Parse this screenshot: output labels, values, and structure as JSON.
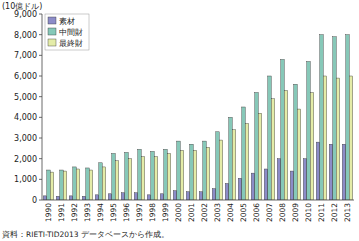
{
  "chart_data": {
    "type": "bar",
    "axis_label": "(10億ドル)",
    "source": "資料：RIETI-TID2013 データベースから作成。",
    "categories": [
      "1990",
      "1991",
      "1992",
      "1993",
      "1994",
      "1995",
      "1996",
      "1997",
      "1998",
      "1999",
      "2000",
      "2001",
      "2002",
      "2003",
      "2004",
      "2005",
      "2006",
      "2007",
      "2008",
      "2009",
      "2010",
      "2011",
      "2012",
      "2013"
    ],
    "series": [
      {
        "name": "素材",
        "color": "#8c8cc8",
        "values": [
          200,
          180,
          200,
          180,
          250,
          300,
          350,
          350,
          250,
          300,
          450,
          400,
          400,
          550,
          800,
          1050,
          1300,
          1500,
          2000,
          1400,
          2000,
          2800,
          2700,
          2700
        ]
      },
      {
        "name": "中間財",
        "color": "#86c8b8",
        "values": [
          1450,
          1450,
          1600,
          1550,
          1800,
          2250,
          2300,
          2450,
          2350,
          2450,
          2850,
          2700,
          2850,
          3300,
          4000,
          4500,
          5200,
          6000,
          6800,
          5600,
          6700,
          8000,
          7900,
          8000
        ]
      },
      {
        "name": "最終財",
        "color": "#e4eca8",
        "values": [
          1350,
          1400,
          1500,
          1450,
          1600,
          1900,
          2000,
          2100,
          2100,
          2250,
          2400,
          2400,
          2550,
          2900,
          3400,
          3700,
          4200,
          4900,
          5300,
          4400,
          5200,
          6000,
          5900,
          6000
        ]
      }
    ],
    "ylim": [
      0,
      9000
    ],
    "yticks": [
      0,
      {
        "value": 1000,
        "label": "1,000"
      },
      {
        "value": 2000,
        "label": "2,000"
      },
      {
        "value": 3000,
        "label": "3,000"
      },
      {
        "value": 4000,
        "label": "4,000"
      },
      {
        "value": 5000,
        "label": "5,000"
      },
      {
        "value": 6000,
        "label": "6,000"
      },
      {
        "value": 7000,
        "label": "7,000"
      },
      {
        "value": 8000,
        "label": "8,000"
      },
      {
        "value": 9000,
        "label": "9,000"
      }
    ],
    "grid": false,
    "legend": "top-left"
  }
}
